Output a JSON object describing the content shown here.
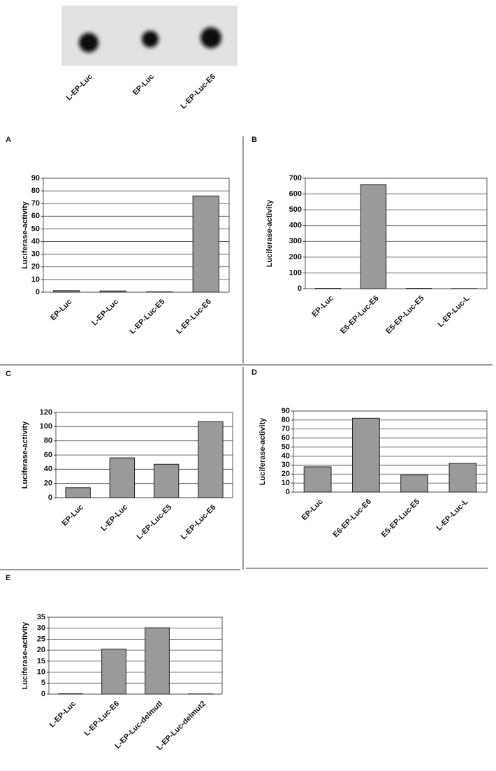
{
  "blot": {
    "lanes": [
      "L-EP-Luc",
      "EP-Luc",
      "L-EP-Luc-E6"
    ]
  },
  "chart_data": [
    {
      "type": "bar",
      "panel": "A",
      "y_label": "Luciferase-activity",
      "categories": [
        "EP-Luc",
        "L-EP-Luc",
        "L-EP-Luc-E5",
        "L-EP-Luc-E6"
      ],
      "values": [
        1.2,
        1,
        0.3,
        76
      ],
      "color": "#9a9a9a",
      "ylim": [
        0,
        90
      ],
      "yticks": [
        0,
        10,
        20,
        30,
        40,
        50,
        60,
        70,
        80,
        90
      ],
      "grid": true
    },
    {
      "type": "bar",
      "panel": "B",
      "y_label": "Luciferase-activity",
      "categories": [
        "EP-Luc",
        "E6-EP-Luc-E6",
        "E5-EP-Luc-E5",
        "L-EP-Luc-L"
      ],
      "values": [
        2,
        660,
        2,
        1
      ],
      "color": "#9a9a9a",
      "ylim": [
        0,
        700
      ],
      "yticks": [
        0,
        100,
        200,
        300,
        400,
        500,
        600,
        700
      ],
      "grid": true
    },
    {
      "type": "bar",
      "panel": "C",
      "y_label": "Luciferase-activity",
      "categories": [
        "EP-Luc",
        "L-EP-Luc",
        "L-EP-Luc-E5",
        "L-EP-Luc-E6"
      ],
      "values": [
        14,
        56,
        47,
        107
      ],
      "color": "#9a9a9a",
      "ylim": [
        0,
        120
      ],
      "yticks": [
        0,
        20,
        40,
        60,
        80,
        100,
        120
      ],
      "grid": true
    },
    {
      "type": "bar",
      "panel": "D",
      "y_label": "Luciferase-activity",
      "categories": [
        "EP-Luc",
        "E6-EP-Luc-E6",
        "E5-EP-Luc-E5",
        "L-EP-Luc-L"
      ],
      "values": [
        28,
        82,
        19,
        32
      ],
      "color": "#9a9a9a",
      "ylim": [
        0,
        90
      ],
      "yticks": [
        0,
        10,
        20,
        30,
        40,
        50,
        60,
        70,
        80,
        90
      ],
      "grid": true
    },
    {
      "type": "bar",
      "panel": "E",
      "y_label": "Luciferase-activity",
      "categories": [
        "L-EP-Luc",
        "L-EP-Luc-E6",
        "L-EP-Luc-delmutI",
        "L-EP-Luc-delmut2"
      ],
      "values": [
        0.2,
        20.5,
        30.2,
        0.1
      ],
      "color": "#9a9a9a",
      "ylim": [
        0,
        35
      ],
      "yticks": [
        0,
        5,
        10,
        15,
        20,
        25,
        30,
        35
      ],
      "grid": true
    }
  ]
}
